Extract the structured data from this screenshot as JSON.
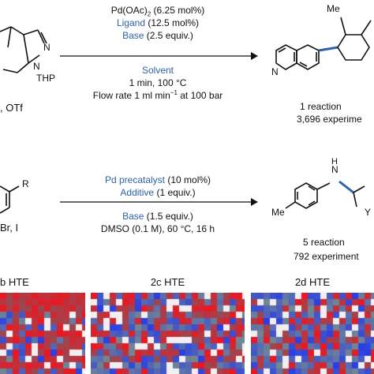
{
  "reaction1": {
    "left_fragment": "N",
    "thp_label": "THP",
    "left_leaving_groups": ", OTf",
    "above_arrow": [
      {
        "text": "Pd(OAc)",
        "sub": "2",
        "rest": " (6.25 mol%)",
        "color": "#111111"
      },
      {
        "text": "Ligand",
        "rest": " (12.5 mol%)",
        "color": "#2e62a8"
      },
      {
        "text": "Base",
        "rest": " (2.5 equiv.)",
        "color": "#2e62a8"
      }
    ],
    "below_arrow": [
      {
        "text": "Solvent",
        "color": "#2e62a8"
      },
      {
        "text": "1 min, 100 °C",
        "color": "#111111"
      },
      {
        "text": "Flow rate 1 ml min",
        "sup": "−1",
        "rest": " at 100 bar",
        "color": "#111111"
      }
    ],
    "product_label_n": "N",
    "product_methyl": "Me",
    "count": "1 reaction",
    "experiments": "3,696 experime"
  },
  "reaction2": {
    "left_substituent": "R",
    "left_halides": "Br, I",
    "above_arrow": [
      {
        "text": "Pd precatalyst",
        "rest": " (10 mol%)"
      },
      {
        "text": "Additive",
        "rest": " (1 equiv.)"
      }
    ],
    "below_arrow": [
      {
        "text": "Base",
        "rest": " (1.5 equiv.)"
      },
      {
        "text": "DMSO (0.1 M), 60 °C, 16 h"
      }
    ],
    "product_label_n": "N",
    "product_label_h": "H",
    "product_methyl": "Me",
    "product_y": "Y",
    "count": "5 reaction",
    "experiments": "792 experiment"
  },
  "heatmaps": [
    {
      "label": "b HTE",
      "seed": 11,
      "bias": 0.75
    },
    {
      "label": "2c HTE",
      "seed": 23,
      "bias": 0.55
    },
    {
      "label": "2d HTE",
      "seed": 37,
      "bias": 0.45
    }
  ],
  "colors": {
    "accent_blue": "#2e62a8",
    "hm_red": "#c8102e",
    "hm_blue": "#1f3fb0"
  }
}
